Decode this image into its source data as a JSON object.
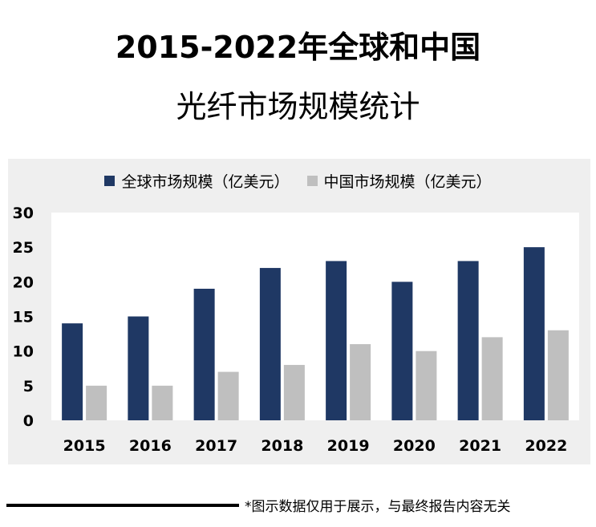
{
  "title_line1": "2015-2022年全球和中国",
  "title_line2": "光纤市场规模统计",
  "footnote": "*图示数据仅用于展示，与最终报告内容无关",
  "colors": {
    "global": "#1f3864",
    "china": "#bfbfbf"
  },
  "chart_data": {
    "type": "bar",
    "categories": [
      "2015",
      "2016",
      "2017",
      "2018",
      "2019",
      "2020",
      "2021",
      "2022"
    ],
    "series": [
      {
        "name": "全球市场规模（亿美元）",
        "values": [
          14,
          15,
          19,
          22,
          23,
          20,
          23,
          25
        ]
      },
      {
        "name": "中国市场规模（亿美元）",
        "values": [
          5,
          5,
          7,
          8,
          11,
          10,
          12,
          13
        ]
      }
    ],
    "ylim": [
      0,
      30
    ],
    "yticks": [
      0,
      5,
      10,
      15,
      20,
      25,
      30
    ],
    "legend": "top-center",
    "grid": false
  }
}
